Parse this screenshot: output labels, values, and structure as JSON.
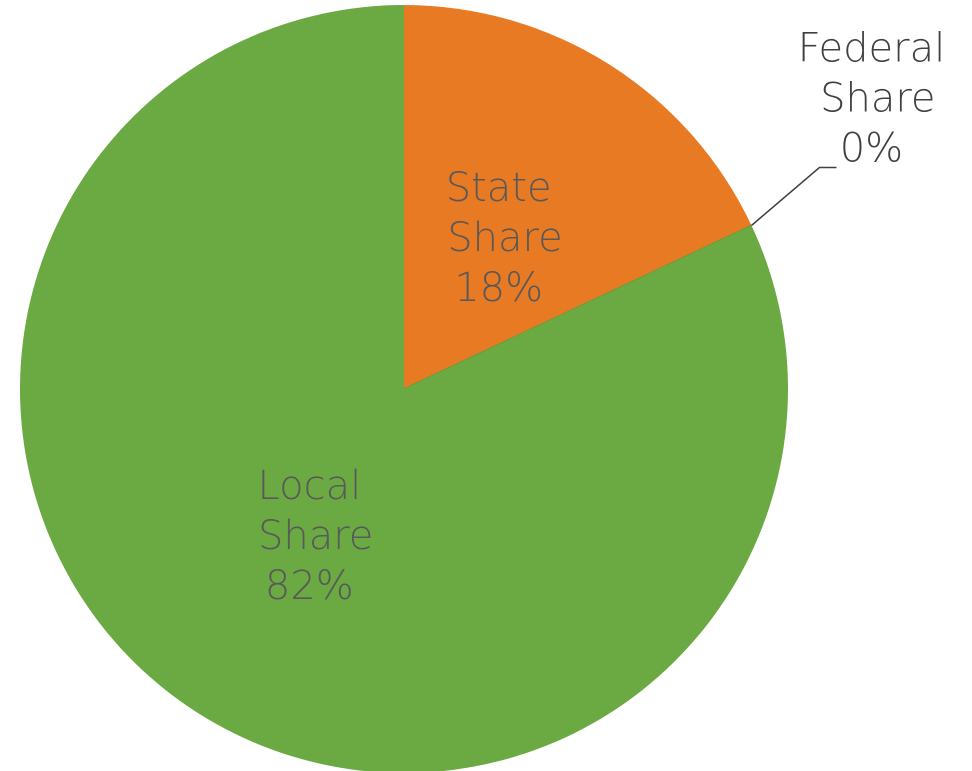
{
  "chart_data": {
    "type": "pie",
    "categories": [
      "State Share",
      "Federal Share",
      "Local Share"
    ],
    "values": [
      18,
      0,
      82
    ],
    "value_labels": [
      "18%",
      "0%",
      "82%"
    ],
    "colors": [
      "#e87a24",
      "#5e9e3a",
      "#6baa42"
    ]
  }
}
